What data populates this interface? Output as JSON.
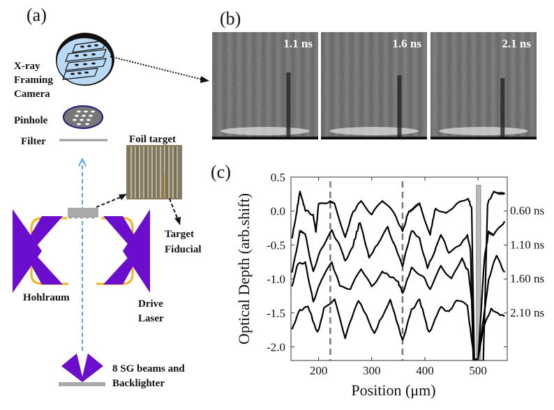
{
  "panels": {
    "a": "(a)",
    "b": "(b)",
    "c": "(c)"
  },
  "schematic": {
    "camera_label": [
      "X-ray",
      "Framing",
      "Camera"
    ],
    "pinhole_label": "Pinhole",
    "filter_label": "Filter",
    "foil_label": "Foil target",
    "fiducial_label": [
      "Target",
      "Fiducial"
    ],
    "hohlraum_label": "Hohlraum",
    "drive_label": [
      "Drive",
      "Laser"
    ],
    "backlighter_label": [
      "8 SG beams and",
      "Backlighter"
    ],
    "colors": {
      "laser": "#6a0dcc",
      "hohlraum": "#f5b21b",
      "camera": "#b9d9f5",
      "beam": "#4a9be0",
      "gray": "#999999"
    }
  },
  "frames": [
    {
      "label": "1.1 ns"
    },
    {
      "label": "1.6 ns"
    },
    {
      "label": "2.1 ns"
    }
  ],
  "chart_data": {
    "type": "line",
    "xlabel": "Position (μm)",
    "ylabel": "Optical Depth (arb.shift)",
    "xlim": [
      148,
      555
    ],
    "ylim": [
      -2.2,
      0.5
    ],
    "xticks": [
      200,
      300,
      400,
      500
    ],
    "yticks": [
      0.5,
      0.0,
      -0.5,
      -1.0,
      -1.5,
      -2.0
    ],
    "ytick_labels": [
      "0.5",
      "0.0",
      "-0.5",
      "-1.0",
      "-1.5",
      "-2.0"
    ],
    "dashed_lines_x": [
      222,
      358
    ],
    "fiducial_bar": {
      "x": [
        497,
        505
      ],
      "y": [
        -2.2,
        0.38
      ]
    },
    "series": [
      {
        "name": "0.60 ns",
        "x": [
          150,
          158,
          165,
          175,
          190,
          195,
          200,
          220,
          230,
          250,
          265,
          280,
          300,
          320,
          340,
          358,
          370,
          380,
          390,
          410,
          420,
          440,
          460,
          480,
          488,
          493,
          500,
          510,
          518,
          530,
          540,
          550
        ],
        "y": [
          -0.4,
          -0.05,
          0.3,
          0.0,
          -0.05,
          -0.3,
          0.1,
          0.15,
          0.1,
          -0.4,
          0.0,
          0.15,
          -0.05,
          0.15,
          0.0,
          -0.3,
          0.0,
          0.05,
          0.1,
          -0.35,
          0.05,
          -0.05,
          0.1,
          0.2,
          0.05,
          -2.2,
          -2.2,
          -2.2,
          0.1,
          0.3,
          0.25,
          0.25
        ]
      },
      {
        "name": "1.10 ns",
        "x": [
          150,
          165,
          175,
          190,
          205,
          225,
          240,
          250,
          265,
          278,
          295,
          310,
          330,
          358,
          375,
          390,
          405,
          430,
          445,
          465,
          480,
          486,
          491,
          500,
          512,
          520,
          530,
          550
        ],
        "y": [
          -0.9,
          -0.3,
          -0.35,
          -0.9,
          -0.55,
          -0.3,
          -0.5,
          -0.75,
          -0.5,
          -0.15,
          -0.7,
          -0.5,
          -0.25,
          -0.8,
          -0.3,
          -0.4,
          -0.85,
          -0.35,
          -0.6,
          -0.5,
          -0.35,
          -0.6,
          -2.2,
          -2.2,
          -0.7,
          -0.3,
          -0.35,
          -0.15
        ]
      },
      {
        "name": "1.60 ns",
        "x": [
          150,
          160,
          175,
          190,
          205,
          225,
          240,
          260,
          280,
          300,
          320,
          335,
          350,
          358,
          375,
          395,
          410,
          430,
          450,
          470,
          482,
          488,
          492,
          500,
          510,
          520,
          535,
          550
        ],
        "y": [
          -1.1,
          -0.8,
          -0.75,
          -1.35,
          -1.0,
          -0.75,
          -1.1,
          -1.15,
          -0.85,
          -1.1,
          -0.9,
          -0.95,
          -1.05,
          -1.2,
          -0.85,
          -0.95,
          -1.15,
          -0.8,
          -1.0,
          -0.7,
          -0.9,
          -1.3,
          -2.2,
          -2.2,
          -1.6,
          -1.0,
          -0.65,
          -0.9
        ]
      },
      {
        "name": "2.10 ns",
        "x": [
          150,
          165,
          180,
          198,
          210,
          230,
          250,
          275,
          305,
          335,
          358,
          375,
          390,
          408,
          430,
          445,
          460,
          480,
          488,
          493,
          500,
          510,
          525,
          550
        ],
        "y": [
          -1.75,
          -1.45,
          -1.4,
          -1.8,
          -1.45,
          -1.3,
          -1.85,
          -1.3,
          -1.8,
          -1.3,
          -1.9,
          -1.45,
          -1.3,
          -1.8,
          -1.4,
          -1.5,
          -1.3,
          -1.4,
          -1.9,
          -2.2,
          -2.2,
          -1.7,
          -1.45,
          -1.55
        ]
      }
    ]
  }
}
